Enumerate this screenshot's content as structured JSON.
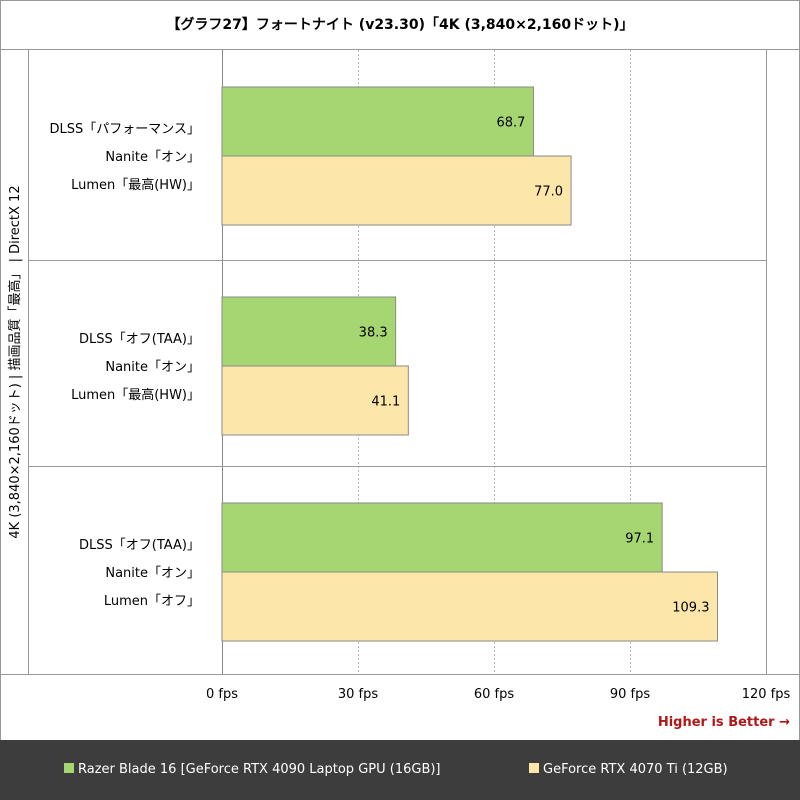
{
  "chart_data": {
    "type": "bar",
    "orientation": "horizontal",
    "title": "【グラフ27】フォートナイト (v23.30)「4K (3,840×2,160ドット)」",
    "side_label": "4K (3,840×2,160ドット) | 描画品質「最高」 | DirectX 12",
    "categories": [
      [
        "DLSS「パフォーマンス」",
        "Nanite「オン」",
        "Lumen「最高(HW)」"
      ],
      [
        "DLSS「オフ(TAA)」",
        "Nanite「オン」",
        "Lumen「最高(HW)」"
      ],
      [
        "DLSS「オフ(TAA)」",
        "Nanite「オン」",
        "Lumen「オフ」"
      ]
    ],
    "series": [
      {
        "name": "Razer Blade 16 [GeForce RTX 4090 Laptop GPU (16GB)]",
        "color": "#a6d672",
        "values": [
          68.7,
          38.3,
          97.1
        ],
        "labels": [
          "68.7",
          "38.3",
          "97.1"
        ]
      },
      {
        "name": "GeForce RTX 4070 Ti (12GB)",
        "color": "#fde6a9",
        "values": [
          77.0,
          41.1,
          109.3
        ],
        "labels": [
          "77.0",
          "41.1",
          "109.3"
        ]
      }
    ],
    "xlim": [
      0,
      120
    ],
    "ticks": [
      0,
      30,
      60,
      90,
      120
    ],
    "tick_labels": [
      "0 fps",
      "30 fps",
      "60 fps",
      "90 fps",
      "120 fps"
    ],
    "note": "Higher is Better →",
    "grid": true,
    "legend_position": "bottom"
  }
}
